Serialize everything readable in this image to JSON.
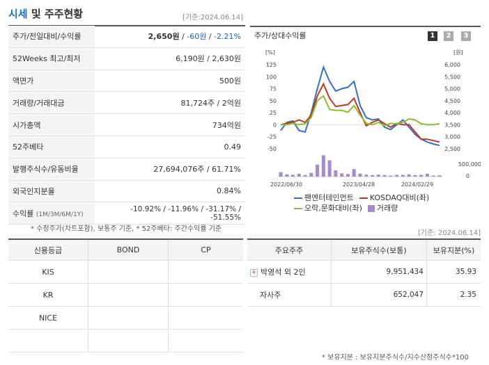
{
  "header": {
    "title_accent": "시세",
    "title_rest": " 및 주주현황",
    "date_stamp": "[기준:2024.06.14]"
  },
  "market_table": {
    "rows": [
      {
        "label": "주가/전일대비/수익률",
        "value_main": "2,650원",
        "value_sep1": " / ",
        "value_neg1": "-60원",
        "value_sep2": " / ",
        "value_neg2": "-2.21%"
      },
      {
        "label": "52Weeks 최고/최저",
        "value": "6,190원 / 2,630원"
      },
      {
        "label": "액면가",
        "value": "500원"
      },
      {
        "label": "거래량/거래대금",
        "value": "81,724주 / 2억원"
      },
      {
        "label": "시가총액",
        "value": "734억원"
      },
      {
        "label": "52주베타",
        "value": "0.49"
      },
      {
        "label": "발행주식수/유동비율",
        "value": "27,694,076주 / 61.71%"
      },
      {
        "label": "외국인지분율",
        "value": "0.84%"
      },
      {
        "label": "수익률",
        "label_sub": "(1M/3M/6M/1Y)",
        "value": "-10.92% / -11.96% / -31.17% / -51.55%"
      }
    ],
    "footnote": "* 수정주가(차트포함), 보통주 기준, * 52주베타: 주간수익률 기준"
  },
  "chart_panel": {
    "title": "주가/상대수익률",
    "page_buttons": [
      "1",
      "2",
      "3"
    ],
    "colors": {
      "company": "#2e6fc9",
      "kosdaq": "#c8321e",
      "sector": "#8cbf2e",
      "volume": "#a68ad0"
    }
  },
  "chart_data": {
    "type": "line",
    "left_axis_unit": "[%]",
    "right_axis_unit": "[원]",
    "left_ticks": [
      "125",
      "100",
      "75",
      "50",
      "25",
      "0",
      "-25",
      "-50"
    ],
    "right_ticks": [
      "6,000",
      "5,500",
      "5,000",
      "4,500",
      "4,000",
      "3,500",
      "3,000",
      "2,500"
    ],
    "volume_tick": "500,000",
    "volume_zero": "0",
    "x_ticks": [
      "2022/06/30",
      "2023/04/28",
      "2024/02/29"
    ],
    "ylim_left": [
      -50,
      125
    ],
    "series": [
      {
        "name": "팬엔터테인먼트",
        "values": [
          -12,
          5,
          8,
          -12,
          -15,
          25,
          75,
          120,
          90,
          70,
          75,
          78,
          90,
          40,
          15,
          10,
          12,
          -5,
          -10,
          0,
          10,
          -5,
          -20,
          -30,
          -36,
          -40,
          -43
        ]
      },
      {
        "name": "KOSDAQ대비(좌)",
        "values": [
          0,
          3,
          5,
          10,
          5,
          20,
          60,
          85,
          55,
          38,
          40,
          42,
          55,
          25,
          -2,
          5,
          10,
          2,
          -5,
          3,
          0,
          0,
          -15,
          -30,
          -30,
          -33,
          -36
        ]
      },
      {
        "name": "오락,문화대비(좌)",
        "values": [
          0,
          0,
          3,
          0,
          2,
          15,
          50,
          60,
          32,
          30,
          30,
          26,
          40,
          20,
          3,
          0,
          5,
          -2,
          3,
          2,
          5,
          12,
          10,
          2,
          0,
          0,
          2
        ]
      }
    ],
    "volume_series": {
      "name": "거래량",
      "values": [
        180000,
        90000,
        70000,
        110000,
        60000,
        150000,
        480000,
        850000,
        650000,
        250000,
        130000,
        100000,
        300000,
        120000,
        80000,
        60000,
        80000,
        60000,
        40000,
        70000,
        70000,
        90000,
        60000,
        70000,
        110000,
        40000,
        50000
      ]
    },
    "volume_max": 1000000
  },
  "legend": [
    {
      "label": "팬엔터테인먼트",
      "color": "#2e6fc9",
      "kind": "line"
    },
    {
      "label": "KOSDAQ대비(좌)",
      "color": "#c8321e",
      "kind": "line"
    },
    {
      "label": "오락,문화대비(좌)",
      "color": "#8cbf2e",
      "kind": "line"
    },
    {
      "label": "거래량",
      "color": "#a68ad0",
      "kind": "box"
    }
  ],
  "date_stamp2": "[기준: 2024.06.14]",
  "credit_table": {
    "headers": [
      "신용등급",
      "BOND",
      "CP"
    ],
    "rows": [
      [
        "KIS",
        "",
        ""
      ],
      [
        "KR",
        "",
        ""
      ],
      [
        "NICE",
        "",
        ""
      ],
      [
        "",
        "",
        ""
      ]
    ]
  },
  "holders_table": {
    "headers": [
      "주요주주",
      "보유주식수(보통)",
      "보유지분(%)"
    ],
    "rows": [
      {
        "name": "박영석 외 2인",
        "shares": "9,951,434",
        "pct": "35.93",
        "expandable": true
      },
      {
        "name": "자사주",
        "shares": "652,047",
        "pct": "2.35",
        "expandable": false
      }
    ],
    "footnote": "* 보유지분 : 보유지분주식수/지수산정주식수*100"
  }
}
